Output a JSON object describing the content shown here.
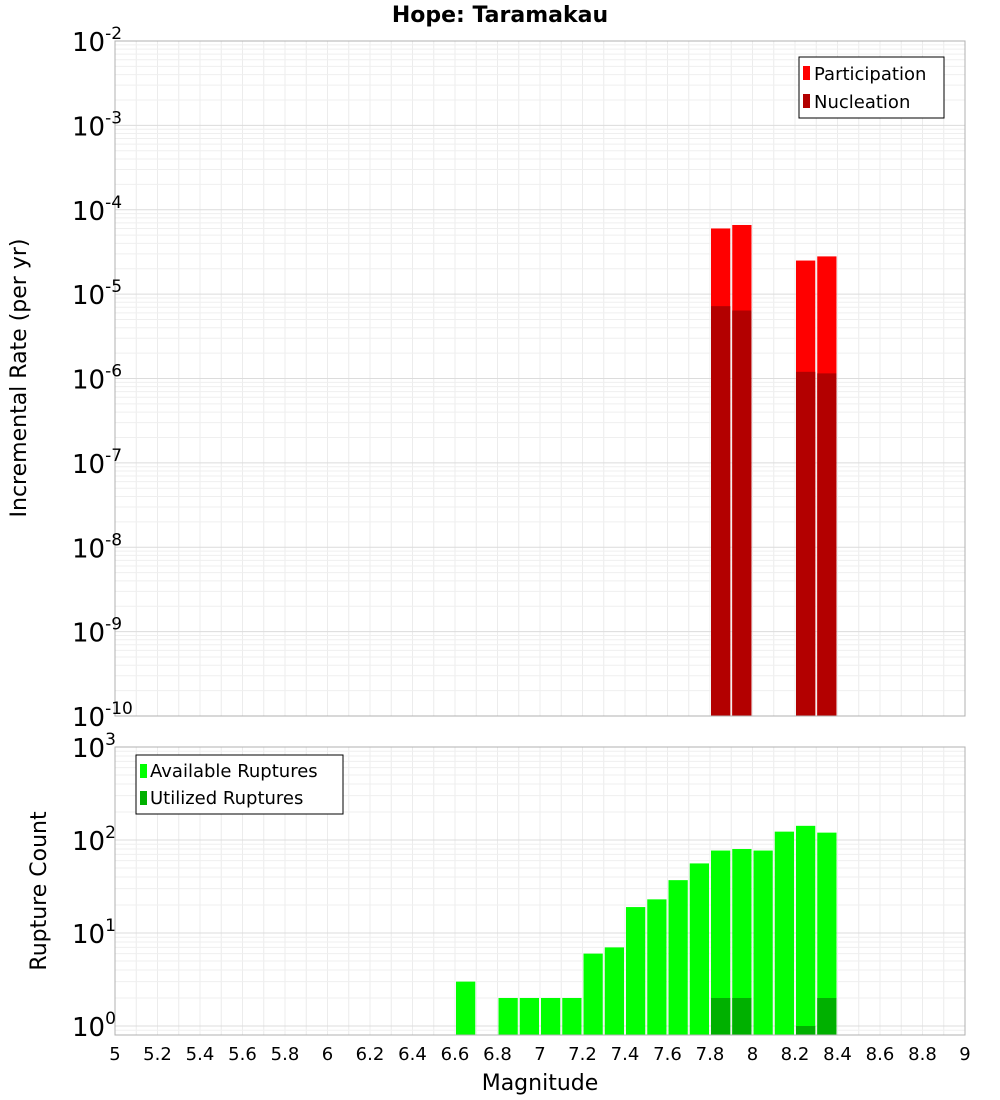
{
  "chart_data": [
    {
      "type": "bar",
      "title": "Hope: Taramakau",
      "xlabel": "",
      "ylabel": "Incremental Rate (per yr)",
      "yscale": "log",
      "ylim": [
        1e-10,
        0.01
      ],
      "xlim": [
        5,
        9
      ],
      "bin_width": 0.1,
      "y_tick_mantissa": "10",
      "y_tick_exponents": [
        "-10",
        "-9",
        "-8",
        "-7",
        "-6",
        "-5",
        "-4",
        "-3",
        "-2"
      ],
      "legend_position": "top-right",
      "series": [
        {
          "name": "Participation",
          "color": "#ff0000",
          "x": [
            7.85,
            7.95,
            8.25,
            8.35
          ],
          "values": [
            6e-05,
            6.6e-05,
            2.5e-05,
            2.8e-05
          ]
        },
        {
          "name": "Nucleation",
          "color": "#b30000",
          "x": [
            7.85,
            7.95,
            8.25,
            8.35
          ],
          "values": [
            7.2e-06,
            6.4e-06,
            1.2e-06,
            1.15e-06
          ]
        }
      ]
    },
    {
      "type": "bar",
      "title": "",
      "xlabel": "Magnitude",
      "ylabel": "Rupture Count",
      "yscale": "log",
      "ylim": [
        0.8,
        1000
      ],
      "xlim": [
        5,
        9
      ],
      "bin_width": 0.1,
      "y_tick_mantissa": "10",
      "y_tick_exponents": [
        "0",
        "1",
        "2",
        "3"
      ],
      "x_ticks": [
        "5",
        "5.2",
        "5.4",
        "5.6",
        "5.8",
        "6",
        "6.2",
        "6.4",
        "6.6",
        "6.8",
        "7",
        "7.2",
        "7.4",
        "7.6",
        "7.8",
        "8",
        "8.2",
        "8.4",
        "8.6",
        "8.8",
        "9"
      ],
      "legend_position": "top-left",
      "series": [
        {
          "name": "Available Ruptures",
          "color": "#00ff00",
          "x": [
            6.65,
            6.85,
            6.95,
            7.05,
            7.15,
            7.25,
            7.35,
            7.45,
            7.55,
            7.65,
            7.75,
            7.85,
            7.95,
            8.05,
            8.15,
            8.25,
            8.35
          ],
          "values": [
            3,
            2,
            2,
            2,
            2,
            6,
            7,
            19,
            23,
            37,
            56,
            77,
            80,
            77,
            123,
            142,
            120
          ]
        },
        {
          "name": "Utilized Ruptures",
          "color": "#00b000",
          "x": [
            7.85,
            7.95,
            8.25,
            8.35
          ],
          "values": [
            2,
            2,
            1,
            2
          ]
        }
      ]
    }
  ]
}
